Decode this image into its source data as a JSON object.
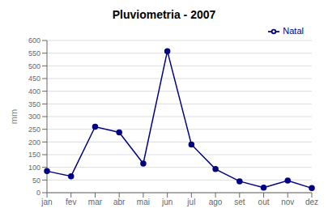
{
  "chart_data": {
    "type": "line",
    "title": "Pluviometria - 2007",
    "categories": [
      "jan",
      "fev",
      "mar",
      "abr",
      "mai",
      "jun",
      "jul",
      "ago",
      "set",
      "out",
      "nov",
      "dez"
    ],
    "series": [
      {
        "name": "Natal",
        "color": "#000080",
        "marker": "circle",
        "values": [
          85,
          65,
          260,
          238,
          115,
          558,
          190,
          93,
          45,
          20,
          48,
          18
        ]
      }
    ],
    "ylabel": "mm",
    "ylim": [
      0,
      600
    ],
    "yticks": [
      0,
      50,
      100,
      150,
      200,
      250,
      300,
      350,
      400,
      450,
      500,
      550,
      600
    ],
    "grid": "y",
    "legend": "upper right"
  }
}
